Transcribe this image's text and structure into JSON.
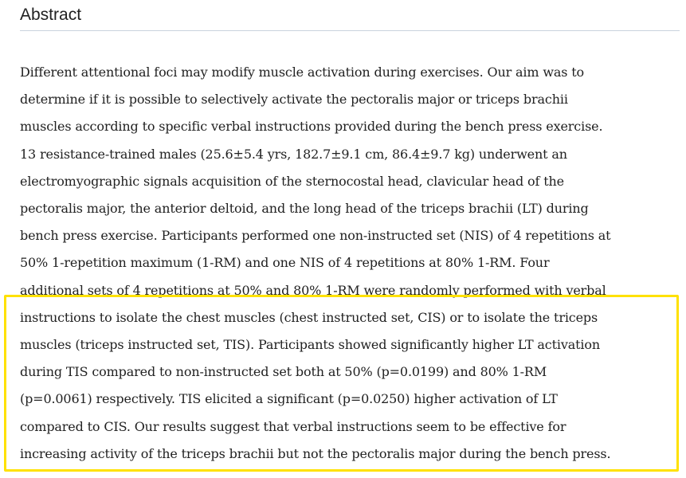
{
  "section": {
    "heading": "Abstract"
  },
  "abstract": {
    "lines": [
      "Different attentional foci may modify muscle activation during exercises. Our aim was to",
      "determine if it is possible to selectively activate the pectoralis major or triceps brachii",
      "muscles according to specific verbal instructions provided during the bench press exercise.",
      "13 resistance-trained males (25.6±5.4 yrs, 182.7±9.1 cm, 86.4±9.7 kg) underwent an",
      "electromyographic signals acquisition of the sternocostal head, clavicular head of the",
      "pectoralis major, the anterior deltoid, and the long head of the triceps brachii (LT) during",
      "bench press exercise. Participants performed one non-instructed set (NIS) of 4 repetitions at",
      "50% 1-repetition maximum (1-RM) and one NIS of 4 repetitions at 80% 1-RM. Four",
      "additional sets of 4 repetitions at 50% and 80% 1-RM were randomly performed with verbal",
      "instructions to isolate the chest muscles (chest instructed set, CIS) or to isolate the triceps",
      "muscles (triceps instructed set, TIS). Participants showed significantly higher LT activation",
      "during TIS compared to non-instructed set both at 50% (p=0.0199) and 80% 1-RM",
      "(p=0.0061) respectively. TIS elicited a significant (p=0.0250) higher activation of LT",
      "compared to CIS. Our results suggest that verbal instructions seem to be effective for",
      "increasing activity of the triceps brachii but not the pectoralis major during the bench press."
    ]
  },
  "colors": {
    "highlight": "#ffe100",
    "rule": "#c9d3de",
    "text": "#212121"
  }
}
